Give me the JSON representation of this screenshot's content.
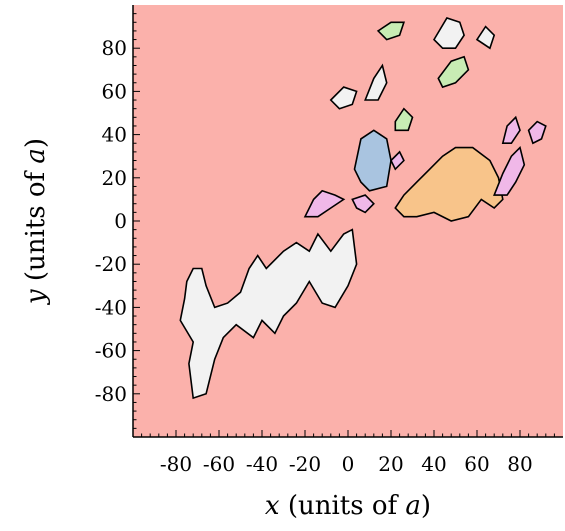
{
  "chart_data": {
    "type": "heatmap",
    "title": "",
    "xlabel": {
      "var": "x",
      "rest": " (units of ",
      "unit": "a",
      "close": ")"
    },
    "ylabel": {
      "var": "y",
      "rest": " (units of ",
      "unit": "a",
      "close": ")"
    },
    "xlim": [
      -100,
      100
    ],
    "ylim": [
      -100,
      100
    ],
    "xticks": [
      -80,
      -60,
      -40,
      -20,
      0,
      20,
      40,
      60,
      80
    ],
    "yticks": [
      -80,
      -60,
      -40,
      -20,
      0,
      20,
      40,
      60,
      80
    ],
    "grid": false,
    "background_color": "#fbb1ab",
    "domains": [
      {
        "color": "#f2f2f2",
        "points": [
          [
            -75,
            -28
          ],
          [
            -72,
            -22
          ],
          [
            -68,
            -22
          ],
          [
            -66,
            -30
          ],
          [
            -62,
            -40
          ],
          [
            -56,
            -38
          ],
          [
            -50,
            -33
          ],
          [
            -46,
            -22
          ],
          [
            -42,
            -16
          ],
          [
            -38,
            -22
          ],
          [
            -30,
            -14
          ],
          [
            -24,
            -10
          ],
          [
            -18,
            -14
          ],
          [
            -14,
            -6
          ],
          [
            -8,
            -14
          ],
          [
            -2,
            -6
          ],
          [
            2,
            -4
          ],
          [
            4,
            -20
          ],
          [
            0,
            -30
          ],
          [
            -6,
            -40
          ],
          [
            -12,
            -38
          ],
          [
            -18,
            -28
          ],
          [
            -24,
            -38
          ],
          [
            -30,
            -44
          ],
          [
            -34,
            -52
          ],
          [
            -40,
            -46
          ],
          [
            -44,
            -54
          ],
          [
            -52,
            -48
          ],
          [
            -58,
            -54
          ],
          [
            -62,
            -64
          ],
          [
            -66,
            -80
          ],
          [
            -72,
            -82
          ],
          [
            -74,
            -66
          ],
          [
            -72,
            -56
          ],
          [
            -78,
            -46
          ],
          [
            -76,
            -36
          ]
        ]
      },
      {
        "color": "#f0b8e8",
        "points": [
          [
            -20,
            2
          ],
          [
            -16,
            10
          ],
          [
            -12,
            14
          ],
          [
            -6,
            12
          ],
          [
            -2,
            10
          ],
          [
            -8,
            6
          ],
          [
            -14,
            2
          ]
        ]
      },
      {
        "color": "#f0b8e8",
        "points": [
          [
            2,
            10
          ],
          [
            8,
            12
          ],
          [
            12,
            8
          ],
          [
            8,
            4
          ],
          [
            4,
            6
          ]
        ]
      },
      {
        "color": "#a9c4e0",
        "points": [
          [
            3,
            24
          ],
          [
            6,
            38
          ],
          [
            12,
            42
          ],
          [
            18,
            38
          ],
          [
            20,
            28
          ],
          [
            18,
            16
          ],
          [
            10,
            14
          ],
          [
            6,
            18
          ]
        ]
      },
      {
        "color": "#f0b8e8",
        "points": [
          [
            20,
            28
          ],
          [
            24,
            32
          ],
          [
            26,
            28
          ],
          [
            22,
            24
          ]
        ]
      },
      {
        "color": "#f8c48a",
        "points": [
          [
            22,
            6
          ],
          [
            26,
            12
          ],
          [
            32,
            18
          ],
          [
            38,
            24
          ],
          [
            44,
            30
          ],
          [
            50,
            34
          ],
          [
            58,
            34
          ],
          [
            66,
            28
          ],
          [
            70,
            20
          ],
          [
            72,
            10
          ],
          [
            68,
            6
          ],
          [
            62,
            10
          ],
          [
            56,
            2
          ],
          [
            48,
            0
          ],
          [
            40,
            4
          ],
          [
            32,
            2
          ],
          [
            26,
            2
          ]
        ]
      },
      {
        "color": "#f0b8e8",
        "points": [
          [
            68,
            12
          ],
          [
            72,
            22
          ],
          [
            76,
            30
          ],
          [
            80,
            34
          ],
          [
            82,
            26
          ],
          [
            78,
            18
          ],
          [
            74,
            12
          ]
        ]
      },
      {
        "color": "#f0b8e8",
        "points": [
          [
            84,
            42
          ],
          [
            88,
            46
          ],
          [
            92,
            44
          ],
          [
            90,
            38
          ],
          [
            86,
            36
          ]
        ]
      },
      {
        "color": "#f0b8e8",
        "points": [
          [
            72,
            36
          ],
          [
            74,
            44
          ],
          [
            78,
            48
          ],
          [
            80,
            42
          ],
          [
            76,
            36
          ]
        ]
      },
      {
        "color": "#f2f2f2",
        "points": [
          [
            -8,
            56
          ],
          [
            -2,
            62
          ],
          [
            4,
            60
          ],
          [
            2,
            54
          ],
          [
            -4,
            52
          ]
        ]
      },
      {
        "color": "#f2f2f2",
        "points": [
          [
            8,
            56
          ],
          [
            12,
            66
          ],
          [
            16,
            72
          ],
          [
            18,
            64
          ],
          [
            14,
            56
          ]
        ]
      },
      {
        "color": "#c8ecb4",
        "points": [
          [
            22,
            46
          ],
          [
            26,
            52
          ],
          [
            30,
            48
          ],
          [
            28,
            42
          ],
          [
            22,
            42
          ]
        ]
      },
      {
        "color": "#c8ecb4",
        "points": [
          [
            14,
            88
          ],
          [
            20,
            92
          ],
          [
            26,
            92
          ],
          [
            24,
            86
          ],
          [
            18,
            84
          ]
        ]
      },
      {
        "color": "#f2f2f2",
        "points": [
          [
            40,
            84
          ],
          [
            46,
            94
          ],
          [
            52,
            92
          ],
          [
            54,
            86
          ],
          [
            50,
            80
          ],
          [
            44,
            80
          ]
        ]
      },
      {
        "color": "#c8ecb4",
        "points": [
          [
            42,
            66
          ],
          [
            48,
            74
          ],
          [
            54,
            76
          ],
          [
            56,
            70
          ],
          [
            50,
            64
          ],
          [
            44,
            62
          ]
        ]
      },
      {
        "color": "#f2f2f2",
        "points": [
          [
            60,
            84
          ],
          [
            64,
            90
          ],
          [
            68,
            86
          ],
          [
            66,
            80
          ]
        ]
      }
    ]
  }
}
